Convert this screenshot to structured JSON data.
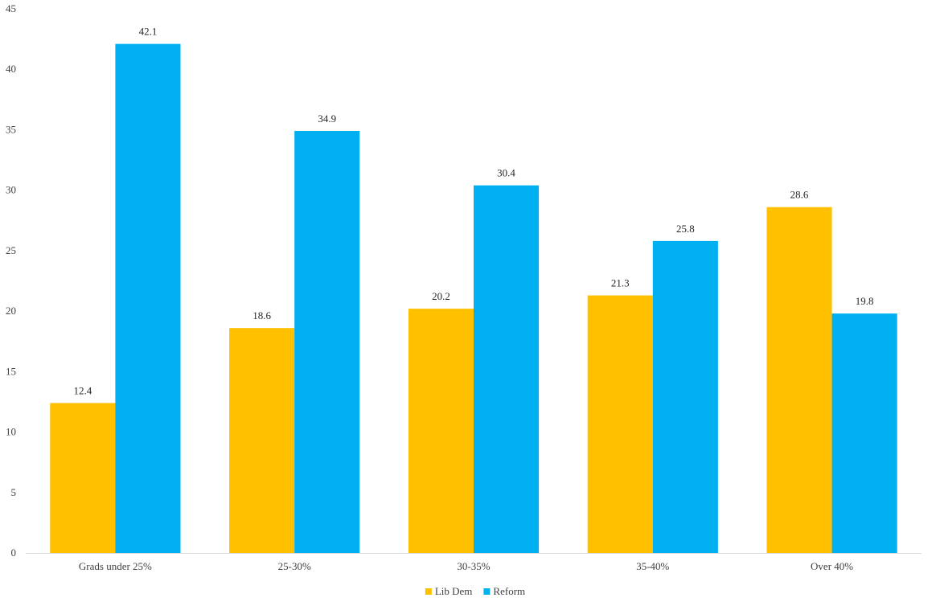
{
  "chart_data": {
    "type": "bar",
    "title": "",
    "xlabel": "",
    "ylabel": "",
    "categories": [
      "Grads under 25%",
      "25-30%",
      "30-35%",
      "35-40%",
      "Over 40%"
    ],
    "series": [
      {
        "name": "Lib Dem",
        "color": "#FFC000",
        "values": [
          12.4,
          18.6,
          20.2,
          21.3,
          28.6
        ]
      },
      {
        "name": "Reform",
        "color": "#00B0F0",
        "values": [
          42.1,
          34.9,
          30.4,
          25.8,
          19.8
        ]
      }
    ],
    "ylim": [
      0,
      45
    ],
    "yticks": [
      "0",
      "5",
      "10",
      "15",
      "20",
      "25",
      "30",
      "35",
      "40",
      "45"
    ],
    "grid": false,
    "data_labels": true,
    "legend_position": "bottom"
  }
}
